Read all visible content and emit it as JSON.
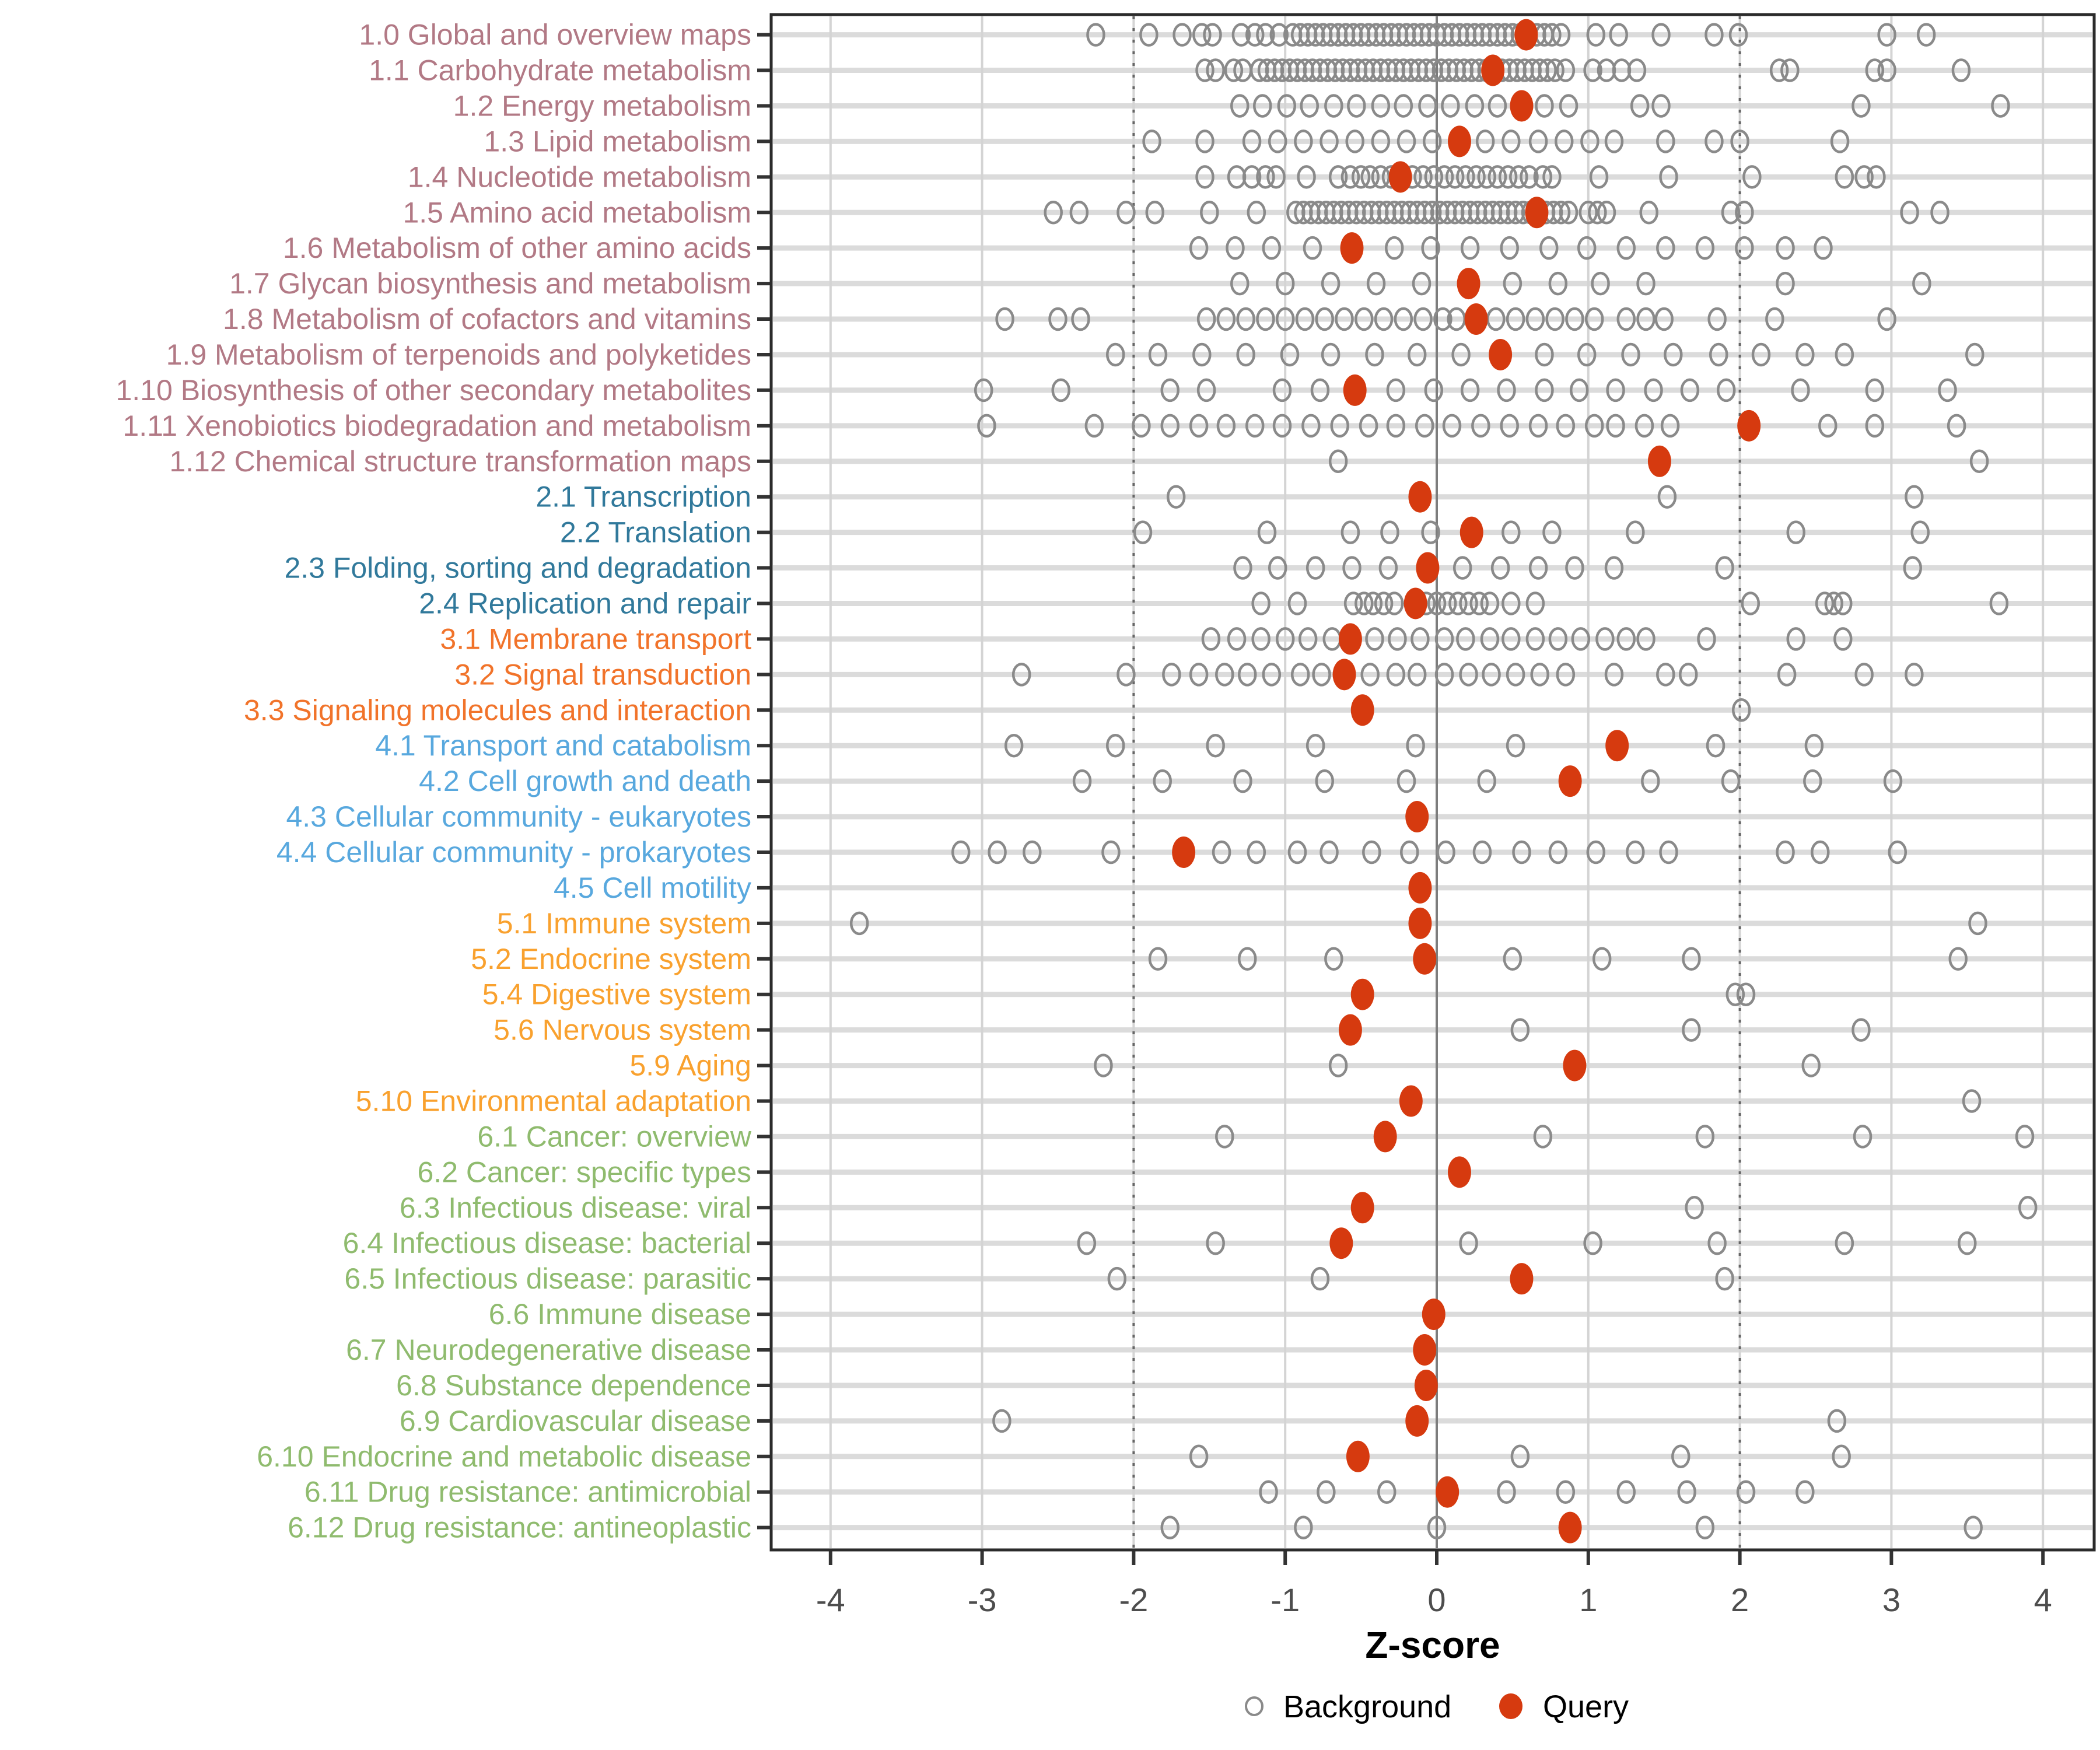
{
  "chart_data": {
    "type": "scatter",
    "title": "",
    "xlabel": "Z-score",
    "xlim": [
      -4.4,
      4.35
    ],
    "x_ticks": [
      -4,
      -3,
      -2,
      -1,
      0,
      1,
      2,
      3,
      4
    ],
    "grid": "on",
    "reference_lines": {
      "zero_line": 0,
      "dashed_thresholds": [
        -2,
        2
      ]
    },
    "legend_position": "bottom-center",
    "legend": [
      {
        "label": "Background",
        "marker": "open-circle",
        "color": "#8A8A8A"
      },
      {
        "label": "Query",
        "marker": "filled-circle",
        "color": "#D63A0F"
      }
    ],
    "colors": {
      "query_dot": "#D63A0F",
      "background_stroke": "#8A8A8A",
      "grid_band": "#DBDBDB",
      "grid_vertical": "#D4D4D4",
      "zero_line": "#7D7D7D",
      "threshold_line": "#666666",
      "panel_border": "#2B2B2B",
      "tick_label": "#4D4D4D",
      "group_1": "#B27985",
      "group_2": "#31799B",
      "group_3": "#F1732A",
      "group_4": "#58A8DE",
      "group_5": "#F9A12E",
      "group_6": "#8FBB6E"
    },
    "rows": [
      {
        "label": "1.0 Global and overview maps",
        "group": "group_1",
        "query": 0.59,
        "background": [
          -2.25,
          -1.9,
          -1.68,
          -1.55,
          -1.48,
          -1.29,
          -1.2,
          -1.13,
          -1.04,
          -0.95,
          -0.9,
          -0.85,
          -0.8,
          -0.75,
          -0.7,
          -0.65,
          -0.6,
          -0.55,
          -0.5,
          -0.45,
          -0.4,
          -0.35,
          -0.3,
          -0.25,
          -0.2,
          -0.15,
          -0.1,
          -0.05,
          0,
          0.05,
          0.1,
          0.15,
          0.2,
          0.25,
          0.3,
          0.35,
          0.4,
          0.45,
          0.5,
          0.55,
          0.66,
          0.71,
          0.76,
          0.82,
          1.05,
          1.2,
          1.48,
          1.83,
          1.99,
          2.97,
          3.23
        ]
      },
      {
        "label": "1.1 Carbohydrate metabolism",
        "group": "group_1",
        "query": 0.37,
        "background": [
          -1.53,
          -1.46,
          -1.34,
          -1.28,
          -1.17,
          -1.12,
          -1.07,
          -1.02,
          -0.97,
          -0.92,
          -0.87,
          -0.82,
          -0.77,
          -0.72,
          -0.67,
          -0.62,
          -0.57,
          -0.52,
          -0.47,
          -0.42,
          -0.37,
          -0.32,
          -0.27,
          -0.22,
          -0.17,
          -0.12,
          -0.07,
          -0.02,
          0.03,
          0.08,
          0.13,
          0.18,
          0.23,
          0.28,
          0.33,
          0.43,
          0.48,
          0.53,
          0.58,
          0.63,
          0.68,
          0.73,
          0.78,
          0.85,
          1.03,
          1.12,
          1.22,
          1.32,
          2.26,
          2.33,
          2.89,
          2.97,
          3.46
        ]
      },
      {
        "label": "1.2 Energy metabolism",
        "group": "group_1",
        "query": 0.56,
        "background": [
          -1.3,
          -1.15,
          -0.99,
          -0.84,
          -0.68,
          -0.53,
          -0.37,
          -0.22,
          -0.06,
          0.09,
          0.25,
          0.4,
          0.71,
          0.87,
          1.34,
          1.48,
          2.8,
          3.72
        ]
      },
      {
        "label": "1.3 Lipid metabolism",
        "group": "group_1",
        "query": 0.15,
        "background": [
          -1.88,
          -1.53,
          -1.22,
          -1.05,
          -0.88,
          -0.71,
          -0.54,
          -0.37,
          -0.2,
          -0.03,
          0.32,
          0.49,
          0.67,
          0.84,
          1.01,
          1.17,
          1.51,
          1.83,
          2.0,
          2.66
        ]
      },
      {
        "label": "1.4 Nucleotide metabolism",
        "group": "group_1",
        "query": -0.24,
        "background": [
          -1.53,
          -1.32,
          -1.22,
          -1.13,
          -1.06,
          -0.86,
          -0.65,
          -0.57,
          -0.5,
          -0.44,
          -0.37,
          -0.3,
          -0.16,
          -0.09,
          -0.02,
          0.05,
          0.12,
          0.19,
          0.26,
          0.33,
          0.4,
          0.47,
          0.54,
          0.61,
          0.7,
          0.76,
          1.07,
          1.53,
          2.08,
          2.69,
          2.82,
          2.9
        ]
      },
      {
        "label": "1.5 Amino acid metabolism",
        "group": "group_1",
        "query": 0.66,
        "background": [
          -2.53,
          -2.36,
          -2.05,
          -1.86,
          -1.5,
          -1.19,
          -0.93,
          -0.88,
          -0.83,
          -0.78,
          -0.73,
          -0.68,
          -0.63,
          -0.58,
          -0.53,
          -0.48,
          -0.43,
          -0.38,
          -0.33,
          -0.28,
          -0.23,
          -0.18,
          -0.13,
          -0.08,
          -0.03,
          0.02,
          0.07,
          0.12,
          0.17,
          0.22,
          0.27,
          0.32,
          0.37,
          0.42,
          0.47,
          0.52,
          0.57,
          0.62,
          0.72,
          0.77,
          0.82,
          0.87,
          1.0,
          1.06,
          1.12,
          1.4,
          1.94,
          2.03,
          3.12,
          3.32
        ]
      },
      {
        "label": "1.6 Metabolism of other amino acids",
        "group": "group_1",
        "query": -0.56,
        "background": [
          -1.57,
          -1.33,
          -1.09,
          -0.82,
          -0.28,
          -0.04,
          0.22,
          0.48,
          0.74,
          0.99,
          1.25,
          1.51,
          1.77,
          2.03,
          2.3,
          2.55
        ]
      },
      {
        "label": "1.7 Glycan biosynthesis and metabolism",
        "group": "group_1",
        "query": 0.21,
        "background": [
          -1.3,
          -1.0,
          -0.7,
          -0.4,
          -0.1,
          0.5,
          0.8,
          1.08,
          1.38,
          2.3,
          3.2
        ]
      },
      {
        "label": "1.8 Metabolism of cofactors and vitamins",
        "group": "group_1",
        "query": 0.26,
        "background": [
          -2.85,
          -2.5,
          -2.35,
          -1.52,
          -1.39,
          -1.26,
          -1.13,
          -1.0,
          -0.87,
          -0.74,
          -0.61,
          -0.48,
          -0.35,
          -0.22,
          -0.09,
          0.04,
          0.13,
          0.39,
          0.52,
          0.65,
          0.78,
          0.91,
          1.04,
          1.25,
          1.38,
          1.5,
          1.85,
          2.23,
          2.97
        ]
      },
      {
        "label": "1.9 Metabolism of terpenoids and polyketides",
        "group": "group_1",
        "query": 0.42,
        "background": [
          -2.12,
          -1.84,
          -1.55,
          -1.26,
          -0.97,
          -0.7,
          -0.41,
          -0.13,
          0.16,
          0.71,
          0.99,
          1.28,
          1.56,
          1.86,
          2.14,
          2.43,
          2.69,
          3.55
        ]
      },
      {
        "label": "1.10 Biosynthesis of other secondary metabolites",
        "group": "group_1",
        "query": -0.54,
        "background": [
          -2.99,
          -2.48,
          -1.76,
          -1.52,
          -1.02,
          -0.77,
          -0.27,
          -0.02,
          0.22,
          0.46,
          0.71,
          0.94,
          1.18,
          1.43,
          1.67,
          1.91,
          2.4,
          2.89,
          3.37
        ]
      },
      {
        "label": "1.11 Xenobiotics biodegradation and metabolism",
        "group": "group_1",
        "query": 2.06,
        "background": [
          -2.97,
          -2.26,
          -1.95,
          -1.76,
          -1.57,
          -1.39,
          -1.2,
          -1.02,
          -0.83,
          -0.64,
          -0.45,
          -0.27,
          -0.08,
          0.1,
          0.29,
          0.48,
          0.67,
          0.85,
          1.04,
          1.18,
          1.37,
          1.54,
          2.58,
          2.89,
          3.43
        ]
      },
      {
        "label": "1.12 Chemical structure transformation maps",
        "group": "group_1",
        "query": 1.47,
        "background": [
          -0.65,
          3.58
        ]
      },
      {
        "label": "2.1 Transcription",
        "group": "group_2",
        "query": -0.11,
        "background": [
          -1.72,
          1.52,
          3.15
        ]
      },
      {
        "label": "2.2 Translation",
        "group": "group_2",
        "query": 0.23,
        "background": [
          -1.94,
          -1.12,
          -0.57,
          -0.31,
          -0.04,
          0.49,
          0.76,
          1.31,
          2.37,
          3.19
        ]
      },
      {
        "label": "2.3 Folding, sorting and degradation",
        "group": "group_2",
        "query": -0.06,
        "background": [
          -1.28,
          -1.05,
          -0.8,
          -0.56,
          -0.32,
          0.17,
          0.42,
          0.67,
          0.91,
          1.17,
          1.9,
          3.14
        ]
      },
      {
        "label": "2.4 Replication and repair",
        "group": "group_2",
        "query": -0.14,
        "background": [
          -1.16,
          -0.92,
          -0.55,
          -0.48,
          -0.42,
          -0.35,
          -0.28,
          -0.07,
          0.0,
          0.07,
          0.14,
          0.21,
          0.28,
          0.35,
          0.49,
          0.65,
          2.07,
          2.56,
          2.62,
          2.68,
          3.71
        ]
      },
      {
        "label": "3.1 Membrane transport",
        "group": "group_3",
        "query": -0.57,
        "background": [
          -1.49,
          -1.32,
          -1.16,
          -1.0,
          -0.85,
          -0.69,
          -0.41,
          -0.26,
          -0.11,
          0.05,
          0.19,
          0.35,
          0.49,
          0.65,
          0.8,
          0.95,
          1.11,
          1.25,
          1.38,
          1.78,
          2.37,
          2.68
        ]
      },
      {
        "label": "3.2 Signal transduction",
        "group": "group_3",
        "query": -0.61,
        "background": [
          -2.74,
          -2.05,
          -1.75,
          -1.57,
          -1.4,
          -1.25,
          -1.09,
          -0.9,
          -0.76,
          -0.44,
          -0.27,
          -0.13,
          0.05,
          0.21,
          0.36,
          0.52,
          0.68,
          0.85,
          1.17,
          1.51,
          1.66,
          2.31,
          2.82,
          3.15
        ]
      },
      {
        "label": "3.3 Signaling molecules and interaction",
        "group": "group_3",
        "query": -0.49,
        "background": [
          2.01
        ]
      },
      {
        "label": "4.1 Transport and catabolism",
        "group": "group_4",
        "query": 1.19,
        "background": [
          -2.79,
          -2.12,
          -1.46,
          -0.8,
          -0.14,
          0.52,
          1.84,
          2.49
        ]
      },
      {
        "label": "4.2 Cell growth and death",
        "group": "group_4",
        "query": 0.88,
        "background": [
          -2.34,
          -1.81,
          -1.28,
          -0.74,
          -0.2,
          0.33,
          1.41,
          1.94,
          2.48,
          3.01
        ]
      },
      {
        "label": "4.3 Cellular community - eukaryotes",
        "group": "group_4",
        "query": -0.13,
        "background": []
      },
      {
        "label": "4.4 Cellular community - prokaryotes",
        "group": "group_4",
        "query": -1.67,
        "background": [
          -3.14,
          -2.9,
          -2.67,
          -2.15,
          -1.42,
          -1.19,
          -0.92,
          -0.71,
          -0.43,
          -0.18,
          0.06,
          0.3,
          0.56,
          0.8,
          1.05,
          1.31,
          1.53,
          2.3,
          2.53,
          3.04
        ]
      },
      {
        "label": "4.5 Cell motility",
        "group": "group_4",
        "query": -0.11,
        "background": []
      },
      {
        "label": "5.1 Immune system",
        "group": "group_5",
        "query": -0.11,
        "background": [
          -3.81,
          3.57
        ]
      },
      {
        "label": "5.2 Endocrine system",
        "group": "group_5",
        "query": -0.08,
        "background": [
          -1.84,
          -1.25,
          -0.68,
          0.5,
          1.09,
          1.68,
          3.44
        ]
      },
      {
        "label": "5.4 Digestive system",
        "group": "group_5",
        "query": -0.49,
        "background": [
          1.97,
          2.04
        ]
      },
      {
        "label": "5.6 Nervous system",
        "group": "group_5",
        "query": -0.57,
        "background": [
          0.55,
          1.68,
          2.8
        ]
      },
      {
        "label": "5.9 Aging",
        "group": "group_5",
        "query": 0.91,
        "background": [
          -2.2,
          -0.65,
          2.47
        ]
      },
      {
        "label": "5.10 Environmental adaptation",
        "group": "group_5",
        "query": -0.17,
        "background": [
          3.53
        ]
      },
      {
        "label": "6.1 Cancer: overview",
        "group": "group_6",
        "query": -0.34,
        "background": [
          -1.4,
          0.7,
          1.77,
          2.81,
          3.88
        ]
      },
      {
        "label": "6.2 Cancer: specific types",
        "group": "group_6",
        "query": 0.15,
        "background": []
      },
      {
        "label": "6.3 Infectious disease: viral",
        "group": "group_6",
        "query": -0.49,
        "background": [
          1.7,
          3.9
        ]
      },
      {
        "label": "6.4 Infectious disease: bacterial",
        "group": "group_6",
        "query": -0.63,
        "background": [
          -2.31,
          -1.46,
          0.21,
          1.03,
          1.85,
          2.69,
          3.5
        ]
      },
      {
        "label": "6.5 Infectious disease: parasitic",
        "group": "group_6",
        "query": 0.56,
        "background": [
          -2.11,
          -0.77,
          1.9
        ]
      },
      {
        "label": "6.6 Immune disease",
        "group": "group_6",
        "query": -0.02,
        "background": []
      },
      {
        "label": "6.7 Neurodegenerative disease",
        "group": "group_6",
        "query": -0.08,
        "background": []
      },
      {
        "label": "6.8 Substance dependence",
        "group": "group_6",
        "query": -0.07,
        "background": []
      },
      {
        "label": "6.9 Cardiovascular disease",
        "group": "group_6",
        "query": -0.13,
        "background": [
          -2.87,
          2.64
        ]
      },
      {
        "label": "6.10 Endocrine and metabolic disease",
        "group": "group_6",
        "query": -0.52,
        "background": [
          -1.57,
          0.55,
          1.61,
          2.67
        ]
      },
      {
        "label": "6.11 Drug resistance: antimicrobial",
        "group": "group_6",
        "query": 0.07,
        "background": [
          -1.11,
          -0.73,
          -0.33,
          0.46,
          0.85,
          1.25,
          1.65,
          2.04,
          2.43
        ]
      },
      {
        "label": "6.12 Drug resistance: antineoplastic",
        "group": "group_6",
        "query": 0.88,
        "background": [
          -1.76,
          -0.88,
          0.0,
          1.77,
          3.54
        ]
      }
    ]
  }
}
